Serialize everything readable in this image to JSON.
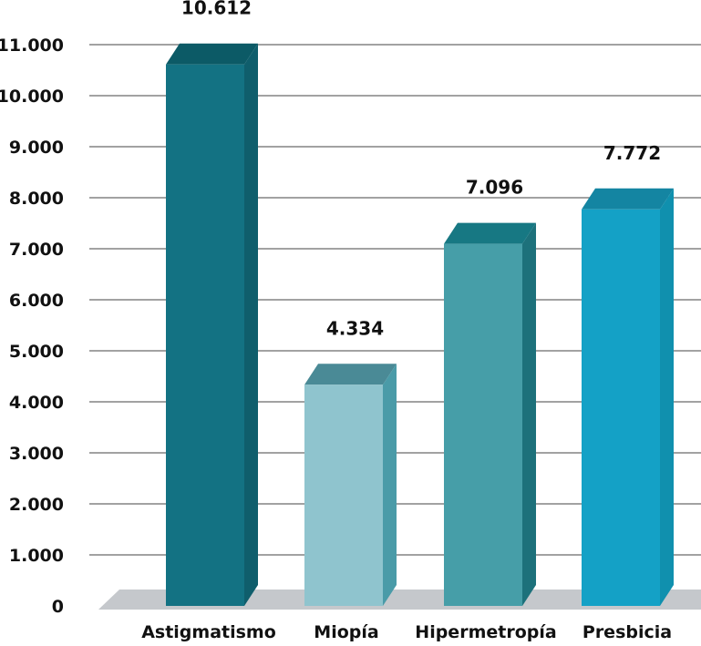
{
  "chart_data": {
    "type": "bar",
    "title": "",
    "xlabel": "",
    "ylabel": "",
    "categories": [
      "Astigmatismo",
      "Miopía",
      "Hipermetropía",
      "Presbicia"
    ],
    "values": [
      10612,
      4334,
      7096,
      7772
    ],
    "value_labels": [
      "10.612",
      "4.334",
      "7.096",
      "7.772"
    ],
    "ylim": [
      0,
      11000
    ],
    "yticks": [
      0,
      1000,
      2000,
      3000,
      4000,
      5000,
      6000,
      7000,
      8000,
      9000,
      10000,
      11000
    ],
    "ytick_labels": [
      "0",
      "1.000",
      "2.000",
      "3.000",
      "4.000",
      "5.000",
      "6.000",
      "7.000",
      "8.000",
      "9.000",
      "10.000",
      "11.000"
    ],
    "grid": true,
    "style": "3d-bar",
    "colors": {
      "bars": [
        {
          "front": "#137283",
          "side": "#0f5e6c",
          "top": "#0c5a66"
        },
        {
          "front": "#8fc4ce",
          "side": "#4a9ba8",
          "top": "#4a8a96"
        },
        {
          "front": "#469ea8",
          "side": "#1d717b",
          "top": "#177883"
        },
        {
          "front": "#14a1c6",
          "side": "#1090ae",
          "top": "#1485a2"
        }
      ],
      "floor": "#c5c8cc",
      "grid": "#6b6b6b",
      "text": "#111111"
    }
  }
}
